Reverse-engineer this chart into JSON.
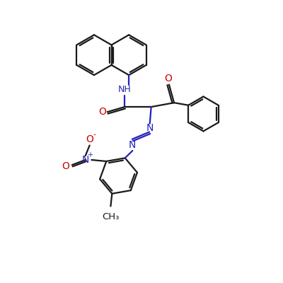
{
  "background_color": "#ffffff",
  "line_color": "#1a1a1a",
  "heteroatom_color": "#2222bb",
  "oxygen_color": "#cc0000",
  "line_width": 1.6,
  "figsize": [
    4.0,
    4.0
  ],
  "dpi": 100,
  "xlim": [
    0,
    10
  ],
  "ylim": [
    0,
    10
  ]
}
